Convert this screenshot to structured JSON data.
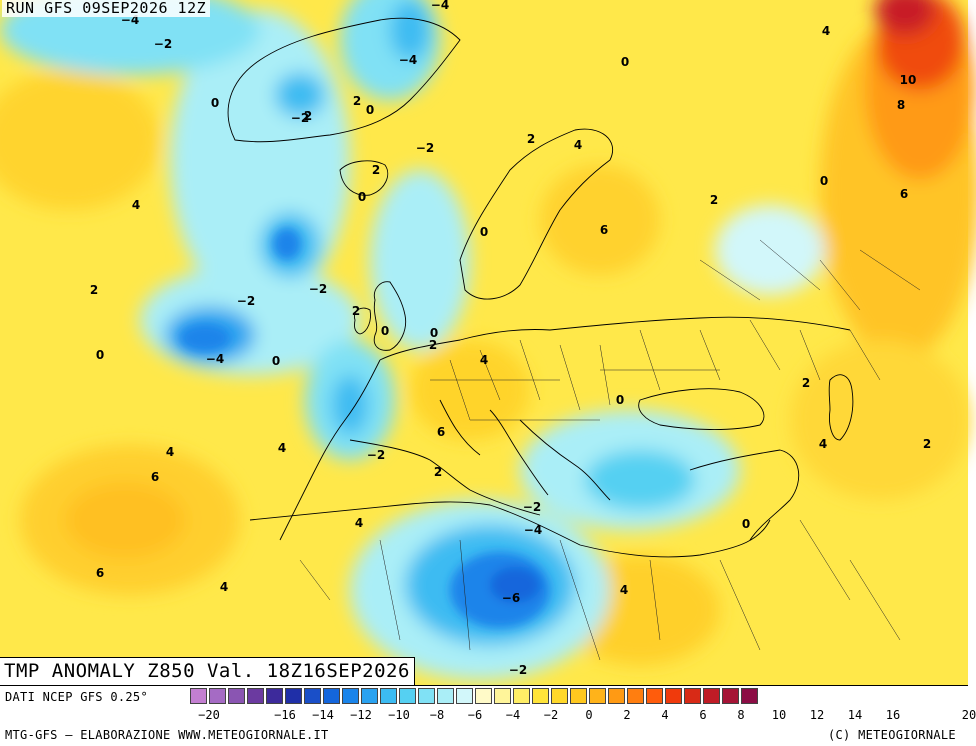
{
  "header": {
    "title": "RUN GFS 09SEP2026 12Z"
  },
  "map_title": "TMP ANOMALY Z850 Val. 18Z16SEP2026",
  "footer": {
    "source": "DATI NCEP GFS 0.25°",
    "credit_left": "MTG-GFS — ELABORAZIONE WWW.METEOGIORNALE.IT",
    "credit_right": "(C) METEOGIORNALE"
  },
  "colorbar": {
    "colors": [
      "#c37fd1",
      "#a56bc4",
      "#8a55b2",
      "#6b3aa0",
      "#3d2a9b",
      "#1f2fa8",
      "#1a4fc8",
      "#1466dc",
      "#1a84ea",
      "#2aa2f0",
      "#3cbbf2",
      "#55d0f2",
      "#80e1f5",
      "#aaeef7",
      "#d2f7fa",
      "#fffac8",
      "#fff59a",
      "#ffee66",
      "#ffe43a",
      "#ffd82a",
      "#ffc81f",
      "#ffb31a",
      "#ff9a14",
      "#ff7e10",
      "#ff5c0c",
      "#f03a0c",
      "#d82a16",
      "#c01c26",
      "#a61436",
      "#8c0d45"
    ],
    "ticks": [
      "−20",
      "−18",
      "−16",
      "−14",
      "−12",
      "−10",
      "−8",
      "−6",
      "−4",
      "−2",
      "0",
      "2",
      "4",
      "6",
      "8",
      "10",
      "12",
      "14",
      "16",
      "18",
      "20"
    ],
    "tick_labels_shown": [
      "−20",
      "−16",
      "−14",
      "−12",
      "−10",
      "−8",
      "−6",
      "−4",
      "−2",
      "0",
      "2",
      "4",
      "6",
      "8",
      "10",
      "12",
      "14",
      "16",
      "20"
    ]
  },
  "contour_labels": [
    "−4",
    "−2",
    "0",
    "2",
    "−4",
    "−4",
    "4",
    "0",
    "−2",
    "2",
    "0",
    "2",
    "−2",
    "2",
    "4",
    "0",
    "4",
    "10",
    "8",
    "2",
    "0",
    "6",
    "0",
    "6",
    "2",
    "−2",
    "−2",
    "2",
    "0",
    "0",
    "−4",
    "0",
    "2",
    "0",
    "4",
    "2",
    "0",
    "4",
    "6",
    "−2",
    "4",
    "6",
    "2",
    "4",
    "2",
    "4",
    "−2",
    "−4",
    "0",
    "6",
    "4",
    "−6",
    "−2",
    "4"
  ]
}
